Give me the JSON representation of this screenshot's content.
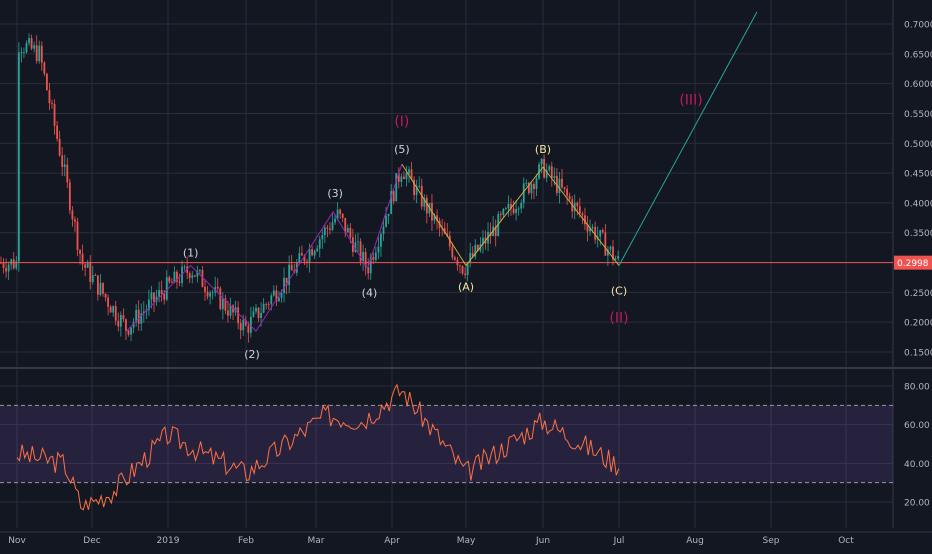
{
  "chart_data": [
    {
      "type": "candlestick",
      "panel": "price",
      "ylim": [
        0.12,
        0.72
      ],
      "y_ticks": [
        "0.7000",
        "0.6500",
        "0.6000",
        "0.5500",
        "0.5000",
        "0.4500",
        "0.4000",
        "0.3500",
        "0.3000",
        "0.2500",
        "0.2000",
        "0.1500"
      ],
      "last_price_label": "0.2998",
      "last_price": 0.2998,
      "grid": true,
      "colors": {
        "up": "#26a69a",
        "down": "#ef5350",
        "price_line": "#ef5350",
        "background": "#131722",
        "grid": "#2a2e39",
        "text": "#b2b5be"
      },
      "series": [
        {
          "name": "",
          "approx_close_by_month": [
            {
              "x": "2018-11-01",
              "y": 0.67
            },
            {
              "x": "2018-11-10",
              "y": 0.65
            },
            {
              "x": "2018-11-20",
              "y": 0.45
            },
            {
              "x": "2018-11-27",
              "y": 0.3
            },
            {
              "x": "2018-12-15",
              "y": 0.19
            },
            {
              "x": "2019-01-01",
              "y": 0.26
            },
            {
              "x": "2019-01-10",
              "y": 0.29
            },
            {
              "x": "2019-02-01",
              "y": 0.19
            },
            {
              "x": "2019-03-10",
              "y": 0.38
            },
            {
              "x": "2019-03-22",
              "y": 0.29
            },
            {
              "x": "2019-04-05",
              "y": 0.46
            },
            {
              "x": "2019-04-30",
              "y": 0.29
            },
            {
              "x": "2019-06-01",
              "y": 0.46
            },
            {
              "x": "2019-07-01",
              "y": 0.2998
            }
          ]
        }
      ],
      "wave_labels": [
        {
          "text": "(1)",
          "x": "2019-01-10",
          "y": 0.29
        },
        {
          "text": "(2)",
          "x": "2019-02-05",
          "y": 0.18
        },
        {
          "text": "(3)",
          "x": "2019-03-08",
          "y": 0.39
        },
        {
          "text": "(4)",
          "x": "2019-03-22",
          "y": 0.29
        },
        {
          "text": "(5)",
          "x": "2019-04-05",
          "y": 0.46
        },
        {
          "text": "(I)",
          "x": "2019-04-05",
          "y": 0.46
        },
        {
          "text": "(A)",
          "x": "2019-05-01",
          "y": 0.29
        },
        {
          "text": "(B)",
          "x": "2019-06-01",
          "y": 0.46
        },
        {
          "text": "(C)",
          "x": "2019-07-01",
          "y": 0.29
        },
        {
          "text": "(II)",
          "x": "2019-07-01",
          "y": 0.29
        },
        {
          "text": "(III)",
          "x": "2019-08-01",
          "y": 0.6
        }
      ]
    },
    {
      "type": "line",
      "panel": "oscillator",
      "ylim": [
        15,
        85
      ],
      "y_ticks": [
        "80.00",
        "60.00",
        "40.00",
        "20.00"
      ],
      "bands": [
        30,
        70
      ],
      "series": [
        {
          "name": "",
          "approx_values": [
            {
              "x": "2018-11-01",
              "y": 45
            },
            {
              "x": "2018-11-20",
              "y": 40
            },
            {
              "x": "2018-11-27",
              "y": 17
            },
            {
              "x": "2018-12-10",
              "y": 26
            },
            {
              "x": "2019-01-01",
              "y": 55
            },
            {
              "x": "2019-01-15",
              "y": 45
            },
            {
              "x": "2019-02-01",
              "y": 35
            },
            {
              "x": "2019-03-05",
              "y": 65
            },
            {
              "x": "2019-03-20",
              "y": 62
            },
            {
              "x": "2019-04-05",
              "y": 78
            },
            {
              "x": "2019-05-01",
              "y": 35
            },
            {
              "x": "2019-06-01",
              "y": 62
            },
            {
              "x": "2019-07-01",
              "y": 39
            }
          ]
        }
      ]
    }
  ],
  "x_ticks": [
    "Nov",
    "Dec",
    "2019",
    "Feb",
    "Mar",
    "Apr",
    "May",
    "Jun",
    "Jul",
    "Aug",
    "Sep",
    "Oct"
  ]
}
